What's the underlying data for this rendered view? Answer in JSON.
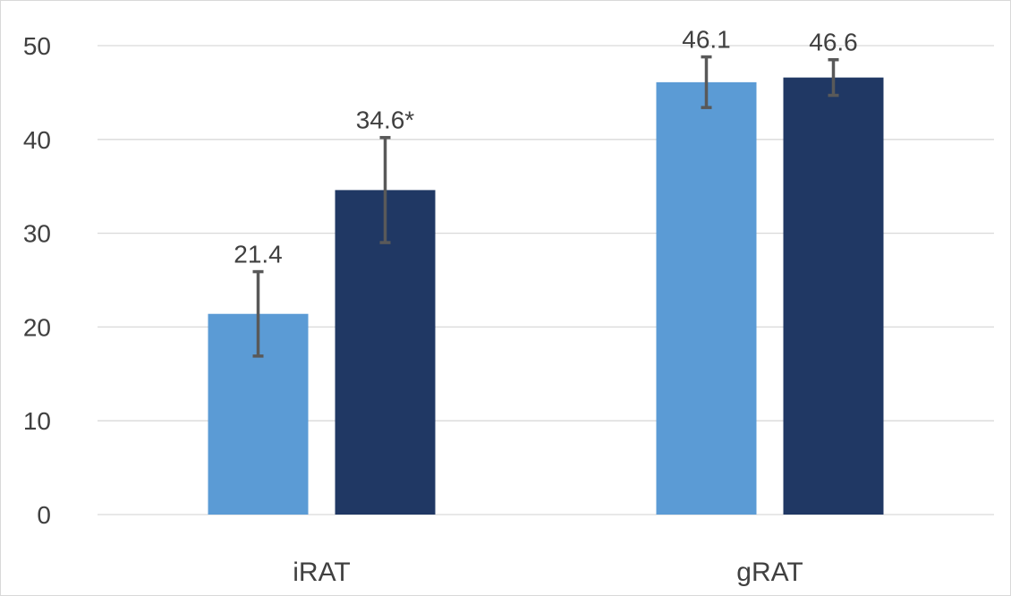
{
  "chart_data": {
    "type": "bar",
    "categories": [
      "iRAT",
      "gRAT"
    ],
    "series": [
      {
        "color": "#5B9BD5",
        "values": [
          21.4,
          46.1
        ],
        "error_low": [
          16.9,
          43.4
        ],
        "error_high": [
          25.9,
          48.8
        ],
        "labels": [
          "21.4",
          "46.1"
        ]
      },
      {
        "color": "#203864",
        "values": [
          34.6,
          46.6
        ],
        "error_low": [
          29.0,
          44.7
        ],
        "error_high": [
          40.2,
          48.5
        ],
        "labels": [
          "34.6*",
          "46.6"
        ]
      }
    ],
    "yticks": [
      0,
      10,
      20,
      30,
      40,
      50
    ],
    "ylim": [
      0,
      50
    ],
    "grid": true,
    "gridline_color": "#d9d9d9",
    "errorbar_color": "#595959",
    "title": "",
    "xlabel": "",
    "ylabel": ""
  }
}
